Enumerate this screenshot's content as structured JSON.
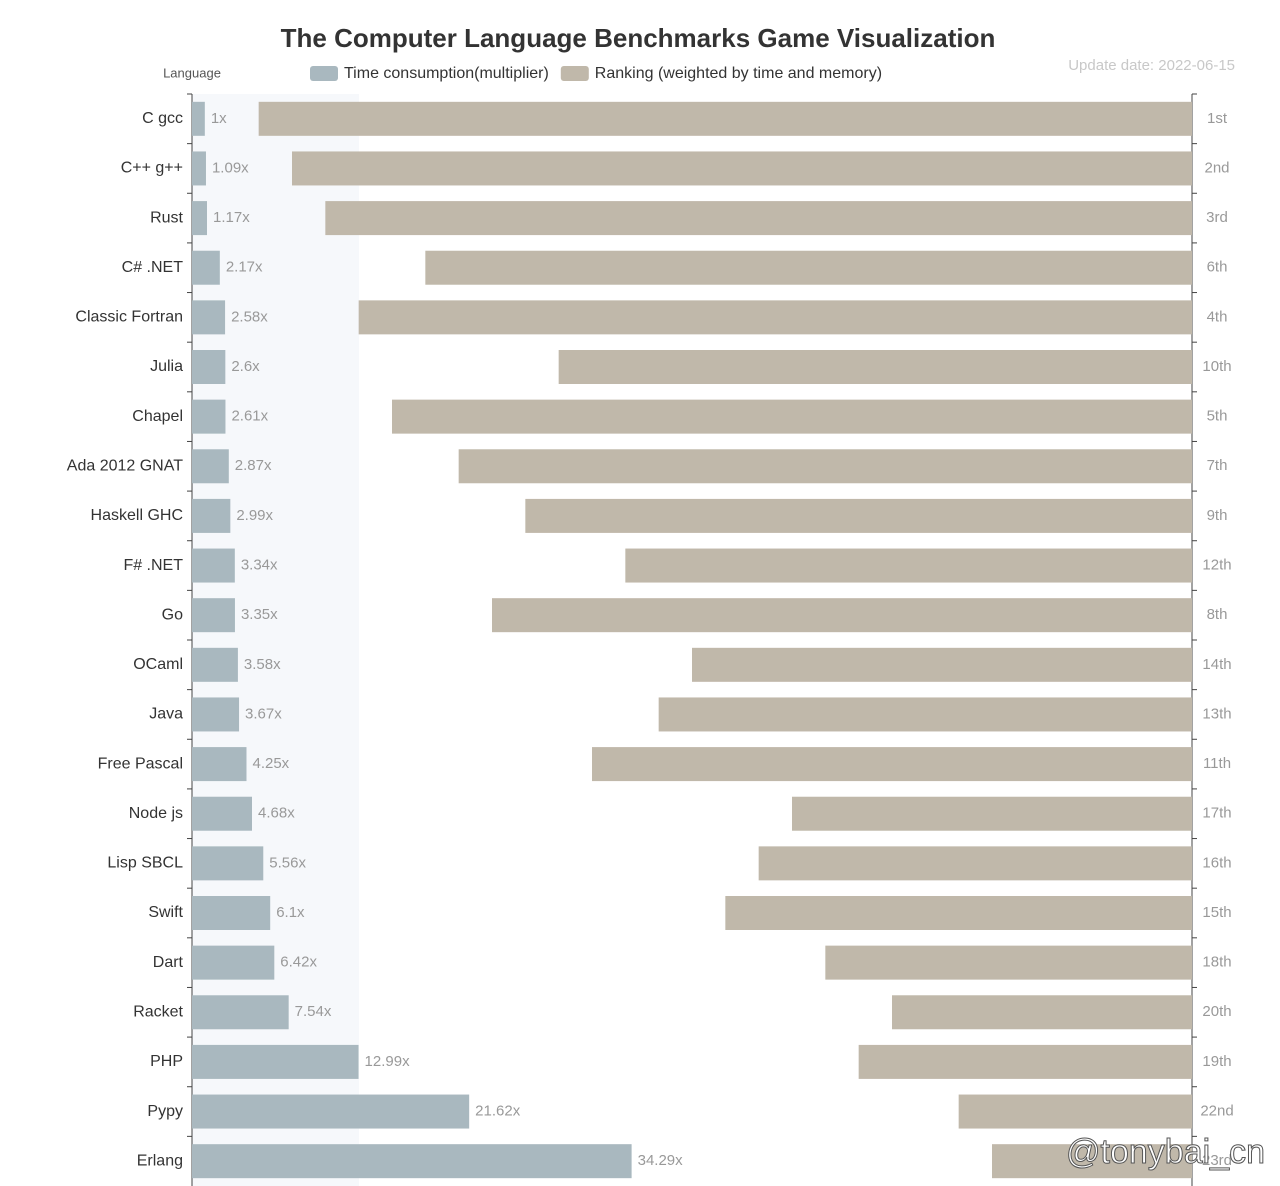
{
  "chart_data": {
    "type": "bar",
    "orientation": "horizontal",
    "title": "The Computer Language Benchmarks Game Visualization",
    "subtitle": "Update date: 2022-06-15",
    "y_label": "Language",
    "watermark": "@tonybai_cn",
    "categories": [
      "C gcc",
      "C++ g++",
      "Rust",
      "C# .NET",
      "Classic Fortran",
      "Julia",
      "Chapel",
      "Ada 2012 GNAT",
      "Haskell GHC",
      "F# .NET",
      "Go",
      "OCaml",
      "Java",
      "Free Pascal",
      "Node js",
      "Lisp SBCL",
      "Swift",
      "Dart",
      "Racket",
      "PHP",
      "Pypy",
      "Erlang"
    ],
    "xlim": [
      0,
      78
    ],
    "x2lim": [
      -1,
      29
    ],
    "series": [
      {
        "name": "Time consumption(multiplier)",
        "color": "#a9b8bf",
        "axis": "x",
        "values": [
          1,
          1.09,
          1.17,
          2.17,
          2.58,
          2.6,
          2.61,
          2.87,
          2.99,
          3.34,
          3.35,
          3.58,
          3.67,
          4.25,
          4.68,
          5.56,
          6.1,
          6.42,
          7.54,
          12.99,
          21.62,
          34.29
        ],
        "value_labels": [
          "1x",
          "1.09x",
          "1.17x",
          "2.17x",
          "2.58x",
          "2.6x",
          "2.61x",
          "2.87x",
          "2.99x",
          "3.34x",
          "3.35x",
          "3.58x",
          "3.67x",
          "4.25x",
          "4.68x",
          "5.56x",
          "6.1x",
          "6.42x",
          "7.54x",
          "12.99x",
          "21.62x",
          "34.29x"
        ]
      },
      {
        "name": "Ranking (weighted by time and memory)",
        "color": "#c0b8aa",
        "axis": "x2",
        "values": [
          1,
          2,
          3,
          6,
          4,
          10,
          5,
          7,
          9,
          12,
          8,
          14,
          13,
          11,
          17,
          16,
          15,
          18,
          20,
          19,
          22,
          23
        ],
        "value_labels": [
          "1st",
          "2nd",
          "3rd",
          "6th",
          "4th",
          "10th",
          "5th",
          "7th",
          "9th",
          "12th",
          "8th",
          "14th",
          "13th",
          "11th",
          "17th",
          "16th",
          "15th",
          "18th",
          "20th",
          "19th",
          "22nd",
          "23rd"
        ]
      }
    ]
  }
}
